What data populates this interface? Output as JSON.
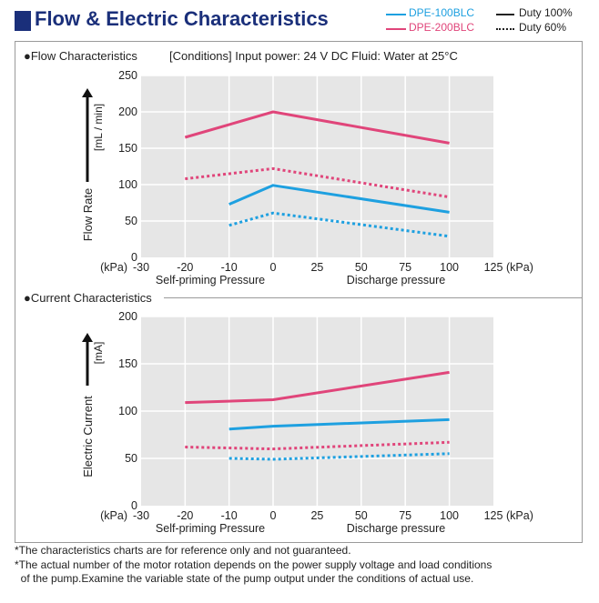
{
  "title": "Flow & Electric Characteristics",
  "legend": {
    "models": [
      {
        "label": "DPE-100BLC",
        "color": "#1ea0e0"
      },
      {
        "label": "DPE-200BLC",
        "color": "#e0457a"
      }
    ],
    "duty": [
      {
        "label": "Duty 100%",
        "style": "solid"
      },
      {
        "label": "Duty 60%",
        "style": "dotted"
      }
    ]
  },
  "flow_section_title": "●Flow Characteristics",
  "flow_conditions": "[Conditions] Input power: 24 V DC  Fluid: Water at 25°C",
  "current_section_title": "●Current Characteristics",
  "footnotes": [
    "*The characteristics charts are for reference only and not guaranteed.",
    "*The actual number of the motor rotation depends on the power supply voltage and load conditions",
    "  of the pump.Examine the variable state of the pump output under the conditions of actual use."
  ],
  "chart_data": [
    {
      "type": "line",
      "title": "Flow Characteristics",
      "ylabel": "Flow Rate",
      "yunit": "[mL / min]",
      "xlabel_left": "Self-priming Pressure",
      "xlabel_right": "Discharge pressure",
      "x_unit_left": "(kPa)",
      "x_unit_right": "(kPa)",
      "xlim": [
        -30,
        125
      ],
      "ylim": [
        0,
        250
      ],
      "xticks": [
        -30,
        -20,
        -10,
        0,
        25,
        50,
        75,
        100,
        125
      ],
      "yticks": [
        0,
        50,
        100,
        150,
        200,
        250
      ],
      "series": [
        {
          "name": "DPE-200BLC Duty 100%",
          "color": "#e0457a",
          "style": "solid",
          "x": [
            -20,
            0,
            100
          ],
          "y": [
            165,
            200,
            157
          ]
        },
        {
          "name": "DPE-200BLC Duty 60%",
          "color": "#e0457a",
          "style": "dotted",
          "x": [
            -20,
            0,
            100
          ],
          "y": [
            108,
            122,
            83
          ]
        },
        {
          "name": "DPE-100BLC Duty 100%",
          "color": "#1ea0e0",
          "style": "solid",
          "x": [
            -10,
            0,
            100
          ],
          "y": [
            73,
            99,
            62
          ]
        },
        {
          "name": "DPE-100BLC Duty 60%",
          "color": "#1ea0e0",
          "style": "dotted",
          "x": [
            -10,
            0,
            100
          ],
          "y": [
            44,
            61,
            29
          ]
        }
      ]
    },
    {
      "type": "line",
      "title": "Current Characteristics",
      "ylabel": "Electric Current",
      "yunit": "[mA]",
      "xlabel_left": "Self-priming Pressure",
      "xlabel_right": "Discharge pressure",
      "x_unit_left": "(kPa)",
      "x_unit_right": "(kPa)",
      "xlim": [
        -30,
        125
      ],
      "ylim": [
        0,
        200
      ],
      "xticks": [
        -30,
        -20,
        -10,
        0,
        25,
        50,
        75,
        100,
        125
      ],
      "yticks": [
        0,
        50,
        100,
        150,
        200
      ],
      "series": [
        {
          "name": "DPE-200BLC Duty 100%",
          "color": "#e0457a",
          "style": "solid",
          "x": [
            -20,
            0,
            100
          ],
          "y": [
            109,
            112,
            141
          ]
        },
        {
          "name": "DPE-200BLC Duty 60%",
          "color": "#e0457a",
          "style": "dotted",
          "x": [
            -20,
            0,
            100
          ],
          "y": [
            62,
            60,
            67
          ]
        },
        {
          "name": "DPE-100BLC Duty 100%",
          "color": "#1ea0e0",
          "style": "solid",
          "x": [
            -10,
            0,
            100
          ],
          "y": [
            81,
            84,
            91
          ]
        },
        {
          "name": "DPE-100BLC Duty 60%",
          "color": "#1ea0e0",
          "style": "dotted",
          "x": [
            -10,
            0,
            100
          ],
          "y": [
            50,
            49,
            55
          ]
        }
      ]
    }
  ]
}
